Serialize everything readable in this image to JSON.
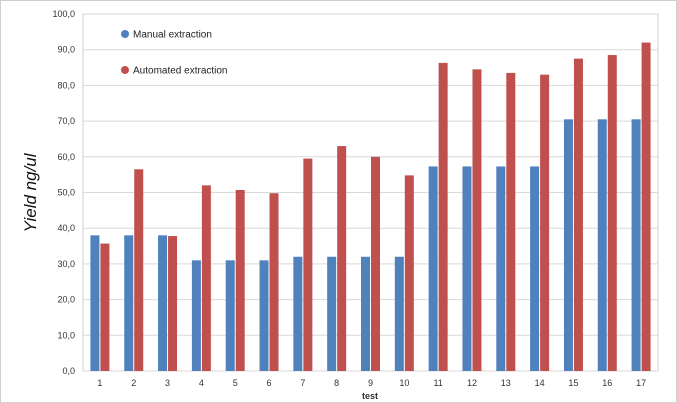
{
  "chart_data": {
    "type": "bar",
    "title": "",
    "xlabel": "test",
    "ylabel": "Yield ng/ul",
    "ylim": [
      0,
      100
    ],
    "ytick_labels": [
      "0,0",
      "10,0",
      "20,0",
      "30,0",
      "40,0",
      "50,0",
      "60,0",
      "70,0",
      "80,0",
      "90,0",
      "100,0"
    ],
    "categories": [
      "1",
      "2",
      "3",
      "4",
      "5",
      "6",
      "7",
      "8",
      "9",
      "10",
      "11",
      "12",
      "13",
      "14",
      "15",
      "16",
      "17"
    ],
    "series": [
      {
        "name": "Manual extraction",
        "color": "#4f81bd",
        "values": [
          38.0,
          38.0,
          38.0,
          31.0,
          31.0,
          31.0,
          32.0,
          32.0,
          32.0,
          32.0,
          57.3,
          57.3,
          57.3,
          57.3,
          70.5,
          70.5,
          70.5
        ]
      },
      {
        "name": "Automated  extraction",
        "color": "#c0504d",
        "values": [
          35.7,
          56.5,
          37.8,
          52.0,
          50.7,
          49.8,
          59.5,
          63.0,
          60.0,
          54.8,
          86.3,
          84.5,
          83.5,
          83.0,
          87.5,
          88.5,
          92.0
        ]
      }
    ],
    "grid": true,
    "legend_position": "top-left"
  }
}
